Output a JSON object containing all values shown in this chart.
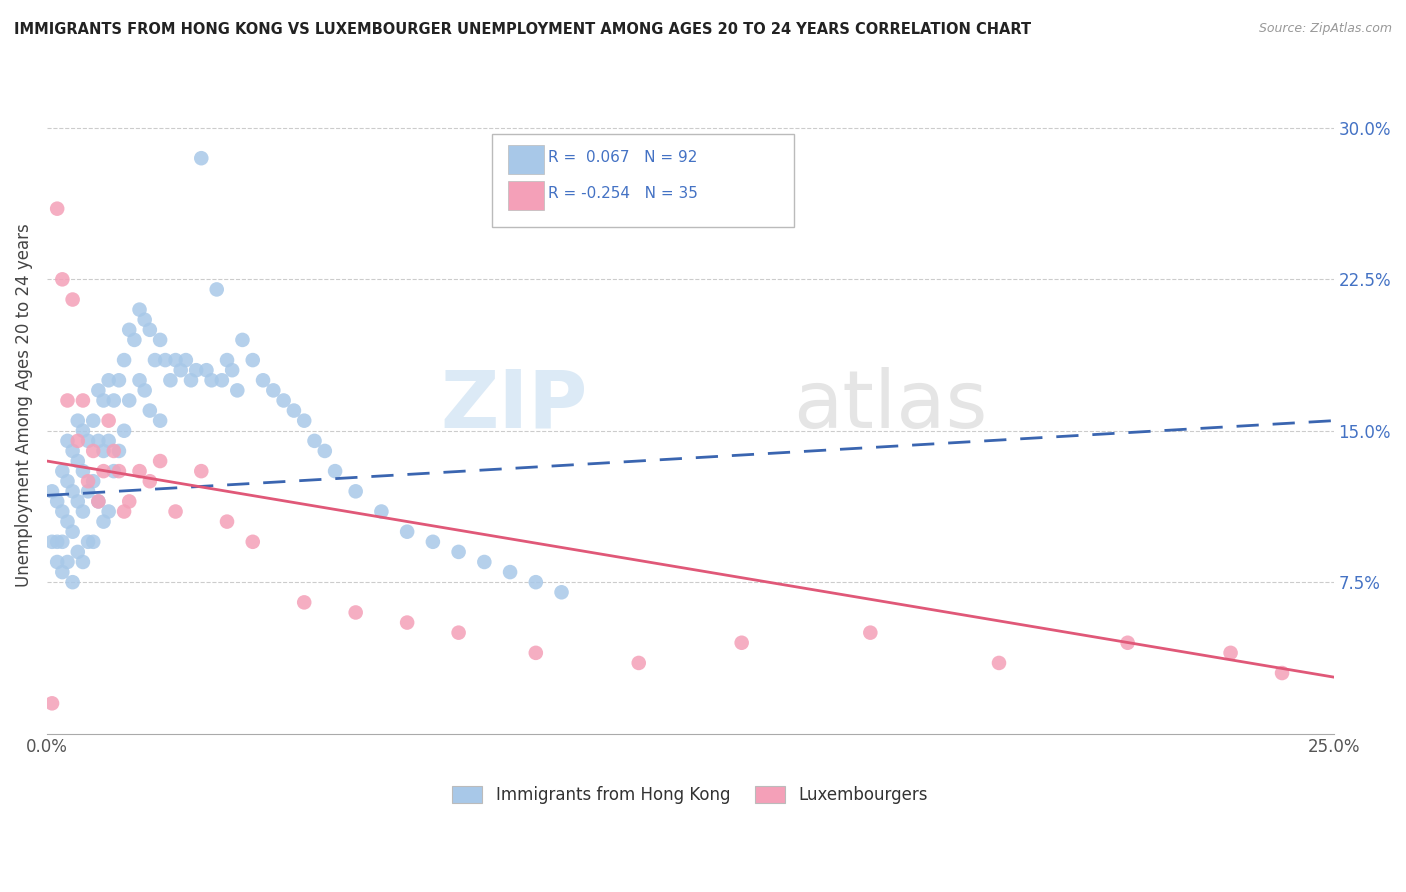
{
  "title": "IMMIGRANTS FROM HONG KONG VS LUXEMBOURGER UNEMPLOYMENT AMONG AGES 20 TO 24 YEARS CORRELATION CHART",
  "source": "Source: ZipAtlas.com",
  "ylabel": "Unemployment Among Ages 20 to 24 years",
  "xlim": [
    0.0,
    0.25
  ],
  "ylim": [
    0.0,
    0.325
  ],
  "ytick_right_labels": [
    "30.0%",
    "22.5%",
    "15.0%",
    "7.5%"
  ],
  "ytick_right_values": [
    0.3,
    0.225,
    0.15,
    0.075
  ],
  "blue_color": "#A8C8E8",
  "pink_color": "#F4A0B8",
  "blue_line_color": "#3A65B0",
  "pink_line_color": "#E05878",
  "legend_text_color": "#4472C4",
  "blue_scatter_x": [
    0.001,
    0.001,
    0.002,
    0.002,
    0.002,
    0.003,
    0.003,
    0.003,
    0.003,
    0.004,
    0.004,
    0.004,
    0.004,
    0.005,
    0.005,
    0.005,
    0.005,
    0.006,
    0.006,
    0.006,
    0.006,
    0.007,
    0.007,
    0.007,
    0.007,
    0.008,
    0.008,
    0.008,
    0.009,
    0.009,
    0.009,
    0.01,
    0.01,
    0.01,
    0.011,
    0.011,
    0.011,
    0.012,
    0.012,
    0.012,
    0.013,
    0.013,
    0.014,
    0.014,
    0.015,
    0.015,
    0.016,
    0.016,
    0.017,
    0.018,
    0.018,
    0.019,
    0.019,
    0.02,
    0.02,
    0.021,
    0.022,
    0.022,
    0.023,
    0.024,
    0.025,
    0.026,
    0.027,
    0.028,
    0.029,
    0.03,
    0.031,
    0.032,
    0.033,
    0.034,
    0.035,
    0.036,
    0.037,
    0.038,
    0.04,
    0.042,
    0.044,
    0.046,
    0.048,
    0.05,
    0.052,
    0.054,
    0.056,
    0.06,
    0.065,
    0.07,
    0.075,
    0.08,
    0.085,
    0.09,
    0.095,
    0.1
  ],
  "blue_scatter_y": [
    0.12,
    0.095,
    0.115,
    0.095,
    0.085,
    0.13,
    0.11,
    0.095,
    0.08,
    0.145,
    0.125,
    0.105,
    0.085,
    0.14,
    0.12,
    0.1,
    0.075,
    0.155,
    0.135,
    0.115,
    0.09,
    0.15,
    0.13,
    0.11,
    0.085,
    0.145,
    0.12,
    0.095,
    0.155,
    0.125,
    0.095,
    0.17,
    0.145,
    0.115,
    0.165,
    0.14,
    0.105,
    0.175,
    0.145,
    0.11,
    0.165,
    0.13,
    0.175,
    0.14,
    0.185,
    0.15,
    0.2,
    0.165,
    0.195,
    0.21,
    0.175,
    0.205,
    0.17,
    0.2,
    0.16,
    0.185,
    0.195,
    0.155,
    0.185,
    0.175,
    0.185,
    0.18,
    0.185,
    0.175,
    0.18,
    0.285,
    0.18,
    0.175,
    0.22,
    0.175,
    0.185,
    0.18,
    0.17,
    0.195,
    0.185,
    0.175,
    0.17,
    0.165,
    0.16,
    0.155,
    0.145,
    0.14,
    0.13,
    0.12,
    0.11,
    0.1,
    0.095,
    0.09,
    0.085,
    0.08,
    0.075,
    0.07
  ],
  "pink_scatter_x": [
    0.001,
    0.002,
    0.003,
    0.004,
    0.005,
    0.006,
    0.007,
    0.008,
    0.009,
    0.01,
    0.011,
    0.012,
    0.013,
    0.014,
    0.015,
    0.016,
    0.018,
    0.02,
    0.022,
    0.025,
    0.03,
    0.035,
    0.04,
    0.05,
    0.06,
    0.07,
    0.08,
    0.095,
    0.115,
    0.135,
    0.16,
    0.185,
    0.21,
    0.23,
    0.24
  ],
  "pink_scatter_y": [
    0.015,
    0.26,
    0.225,
    0.165,
    0.215,
    0.145,
    0.165,
    0.125,
    0.14,
    0.115,
    0.13,
    0.155,
    0.14,
    0.13,
    0.11,
    0.115,
    0.13,
    0.125,
    0.135,
    0.11,
    0.13,
    0.105,
    0.095,
    0.065,
    0.06,
    0.055,
    0.05,
    0.04,
    0.035,
    0.045,
    0.05,
    0.035,
    0.045,
    0.04,
    0.03
  ],
  "blue_trend_x": [
    0.0,
    0.25
  ],
  "blue_trend_y_start": 0.118,
  "blue_trend_y_end": 0.155,
  "pink_trend_x": [
    0.0,
    0.25
  ],
  "pink_trend_y_start": 0.135,
  "pink_trend_y_end": 0.028
}
